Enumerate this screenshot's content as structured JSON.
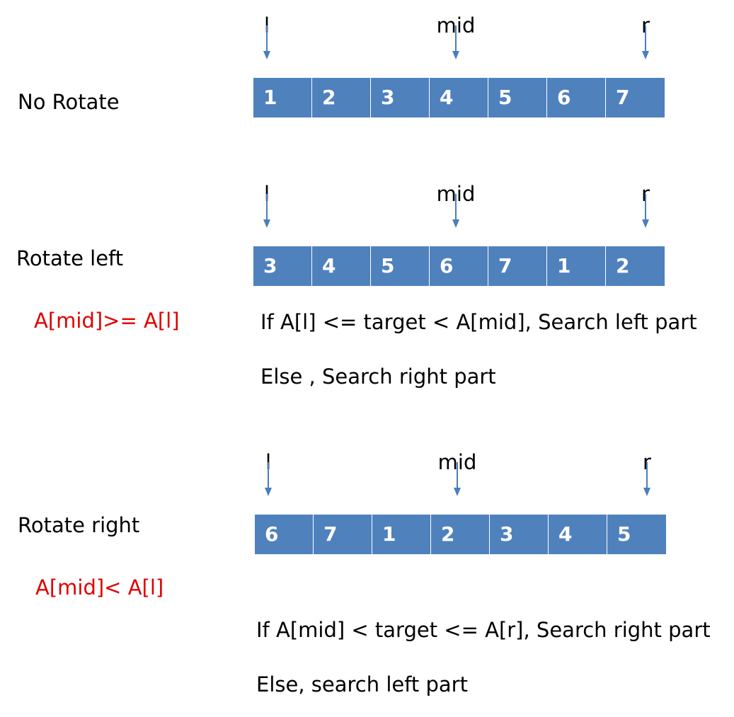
{
  "colors": {
    "cell_fill": "#4f81bd",
    "cell_text": "#ffffff",
    "arrow": "#4a7ebb",
    "condition_text": "#e00000"
  },
  "pointers": {
    "left": "l",
    "mid": "mid",
    "right": "r"
  },
  "sections": [
    {
      "label": "No Rotate",
      "cells": [
        "1",
        "2",
        "3",
        "4",
        "5",
        "6",
        "7"
      ],
      "condition": "",
      "rules": []
    },
    {
      "label": "Rotate left",
      "cells": [
        "3",
        "4",
        "5",
        "6",
        "7",
        "1",
        "2"
      ],
      "condition": "A[mid]>= A[l]",
      "rules": [
        "If  A[l] <= target < A[mid], Search left part",
        "Else , Search right part"
      ]
    },
    {
      "label": "Rotate right",
      "cells": [
        "6",
        "7",
        "1",
        "2",
        "3",
        "4",
        "5"
      ],
      "condition": "A[mid]< A[l]",
      "rules": [
        "If  A[mid] < target <= A[r], Search right part",
        "Else, search left part"
      ]
    }
  ]
}
